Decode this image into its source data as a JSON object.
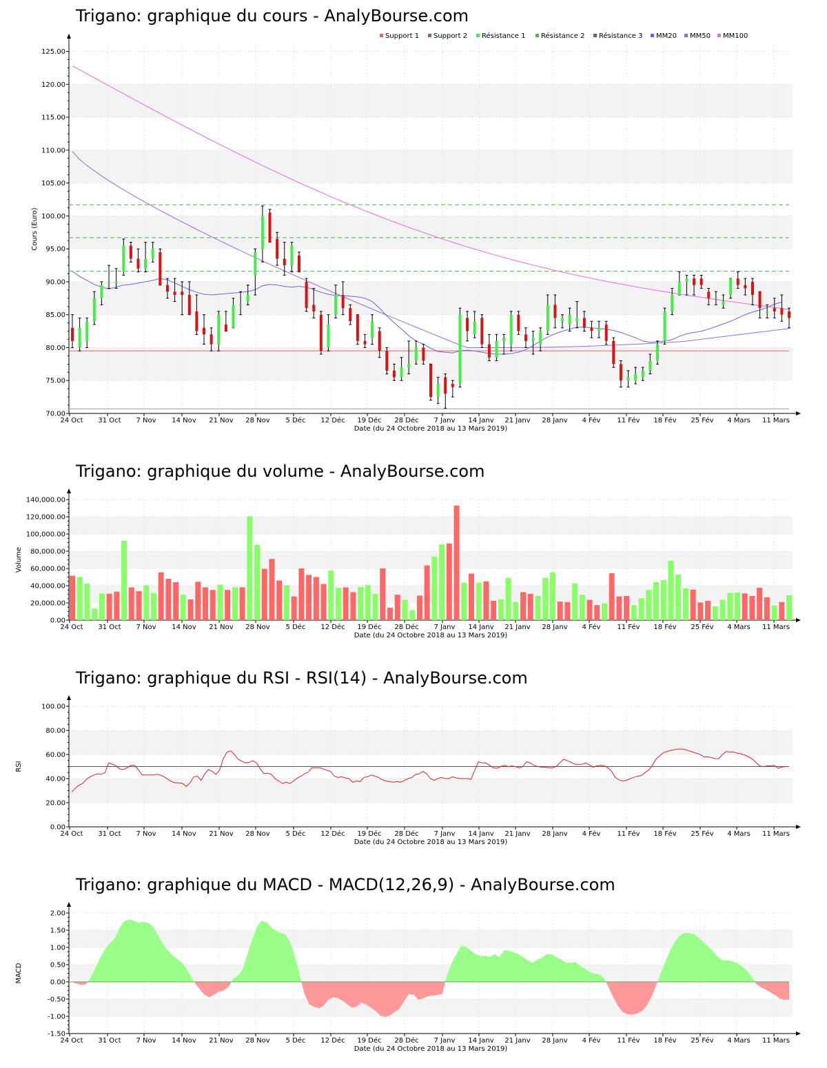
{
  "date_caption": "Date (du 24 Octobre 2018 au 13 Mars 2019)",
  "x_tick_labels": [
    "24 Oct",
    "31 Oct",
    "7 Nov",
    "14 Nov",
    "21 Nov",
    "28 Nov",
    "5 Déc",
    "12 Déc",
    "19 Déc",
    "28 Déc",
    "7 Janv",
    "14 Janv",
    "21 Janv",
    "28 Janv",
    "4 Fév",
    "11 Fév",
    "18 Fév",
    "25 Fév",
    "4 Mars",
    "11 Mars"
  ],
  "colors": {
    "up": "#44ee44",
    "down": "#dd1111",
    "vol_up": "#88ff66",
    "vol_down": "#ff6666",
    "mm20": "#6666ee",
    "mm50": "#9966ee",
    "mm100": "#ee66ee",
    "support": "#ee6666",
    "resistance": "#44bb44"
  },
  "chart_data": [
    {
      "type": "candlestick",
      "title": "Trigano: graphique du cours - AnalyBourse.com",
      "ylabel": "Cours (Euro)",
      "ylim": [
        70,
        126
      ],
      "yticks": [
        "70.00",
        "75.00",
        "80.00",
        "85.00",
        "90.00",
        "95.00",
        "100.00",
        "105.00",
        "110.00",
        "115.00",
        "120.00",
        "125.00"
      ],
      "legend": [
        "Support 1",
        "Support 2",
        "Résistance 1",
        "Résistance 2",
        "Résistance 3",
        "MM20",
        "MM50",
        "MM100"
      ],
      "support_1": 79.5,
      "support_2": 70.7,
      "resistance_1": 91.6,
      "resistance_2": 96.7,
      "resistance_3": 101.7,
      "ohlc": [
        [
          83,
          85,
          80,
          81
        ],
        [
          80,
          84.5,
          79.5,
          83
        ],
        [
          81,
          84.5,
          80,
          84
        ],
        [
          84,
          88.5,
          83.5,
          87.5
        ],
        [
          87.5,
          90,
          86.5,
          89.5
        ],
        [
          90,
          92.5,
          89,
          90
        ],
        [
          90,
          92,
          89,
          90
        ],
        [
          91.5,
          96.5,
          91,
          95.5
        ],
        [
          95.5,
          96,
          93,
          93.5
        ],
        [
          93.5,
          95,
          91.5,
          92
        ],
        [
          92,
          96,
          91.5,
          93.5
        ],
        [
          93.5,
          96,
          93,
          95
        ],
        [
          94.5,
          95,
          89.5,
          89.5
        ],
        [
          89.5,
          90.5,
          87.5,
          88.5
        ],
        [
          88.5,
          90.5,
          87,
          88
        ],
        [
          88.5,
          90,
          85,
          88
        ],
        [
          88,
          90,
          85,
          85
        ],
        [
          85.5,
          88,
          82,
          82.5
        ],
        [
          83,
          85,
          80.5,
          82
        ],
        [
          82,
          83,
          79.5,
          80.5
        ],
        [
          80.5,
          85.5,
          79.5,
          85
        ],
        [
          83.5,
          85.5,
          82.5,
          82.5
        ],
        [
          83,
          87.5,
          83,
          86.5
        ],
        [
          86.5,
          88.5,
          85,
          86.5
        ],
        [
          87,
          89.5,
          86.5,
          88
        ],
        [
          91,
          95,
          88,
          94.5
        ],
        [
          95,
          101.5,
          93,
          100
        ],
        [
          100.5,
          101,
          96,
          96
        ],
        [
          96.5,
          97.5,
          92.5,
          93.5
        ],
        [
          93.5,
          96,
          91,
          92.5
        ],
        [
          92.5,
          96,
          91.5,
          95.5
        ],
        [
          94,
          94.5,
          91.5,
          91.5
        ],
        [
          90,
          90.5,
          85.5,
          86
        ],
        [
          86.5,
          89,
          84.5,
          85.5
        ],
        [
          85,
          85.5,
          79,
          79.5
        ],
        [
          80,
          85,
          79.5,
          83.5
        ],
        [
          85,
          89.5,
          84.5,
          88
        ],
        [
          88,
          90,
          85,
          86
        ],
        [
          86,
          86.5,
          83.5,
          84
        ],
        [
          85,
          85,
          80.5,
          81
        ],
        [
          81,
          82,
          80,
          80.5
        ],
        [
          81.5,
          85,
          80.5,
          84
        ],
        [
          82.5,
          83,
          78.5,
          79.5
        ],
        [
          79.5,
          80,
          76,
          76.5
        ],
        [
          76.5,
          77.5,
          75,
          75.5
        ],
        [
          75.5,
          78.5,
          75,
          77
        ],
        [
          77,
          81,
          76,
          77.5
        ],
        [
          78,
          81,
          77.5,
          80
        ],
        [
          80,
          80.5,
          77.5,
          78
        ],
        [
          77.5,
          77.5,
          72,
          72.5
        ],
        [
          72.5,
          75.5,
          71.5,
          74.5
        ],
        [
          75.5,
          76,
          70.8,
          73
        ],
        [
          74.5,
          75,
          72.5,
          74
        ],
        [
          74.5,
          86,
          74,
          85
        ],
        [
          84.5,
          85.5,
          81,
          82.5
        ],
        [
          82,
          85.5,
          81.5,
          84
        ],
        [
          84.5,
          85,
          80,
          80.5
        ],
        [
          80.5,
          82,
          78,
          78.5
        ],
        [
          78.5,
          82,
          78,
          81
        ],
        [
          81,
          82,
          79,
          81.5
        ],
        [
          80.5,
          85.5,
          79.5,
          85
        ],
        [
          85,
          85.5,
          82,
          82.5
        ],
        [
          82,
          83,
          80,
          81
        ],
        [
          81,
          82.5,
          79,
          81.5
        ],
        [
          80.5,
          83,
          79.5,
          82.5
        ],
        [
          82.5,
          88,
          82,
          86.5
        ],
        [
          86.5,
          88,
          83,
          84.5
        ],
        [
          84,
          85,
          83,
          84.5
        ],
        [
          83.5,
          86,
          82.5,
          85
        ],
        [
          84,
          87,
          83,
          84.5
        ],
        [
          84.5,
          85.5,
          82.5,
          83
        ],
        [
          83,
          84,
          81.5,
          82.5
        ],
        [
          82.5,
          84,
          81.5,
          83
        ],
        [
          83.5,
          84,
          80.5,
          81
        ],
        [
          81,
          81.5,
          77,
          77.5
        ],
        [
          77.5,
          78,
          74,
          75
        ],
        [
          75,
          76.5,
          74,
          75.5
        ],
        [
          75,
          77,
          74.5,
          76
        ],
        [
          75.5,
          77,
          75,
          76.5
        ],
        [
          76.5,
          79,
          76,
          78
        ],
        [
          78,
          81,
          77.5,
          80.5
        ],
        [
          81,
          86,
          80.5,
          85.5
        ],
        [
          85.5,
          89,
          85,
          88
        ],
        [
          88,
          91.5,
          88,
          90
        ],
        [
          90,
          91,
          88,
          90.5
        ],
        [
          90.5,
          91,
          88,
          89.5
        ],
        [
          90.5,
          91,
          89,
          89.5
        ],
        [
          88.5,
          89,
          86.5,
          87.5
        ],
        [
          87.5,
          88.5,
          86.5,
          87.5
        ],
        [
          86.5,
          88,
          86,
          87
        ],
        [
          88,
          90.5,
          87.5,
          90.5
        ],
        [
          90.5,
          91.5,
          89,
          89.5
        ],
        [
          89.5,
          90.5,
          88,
          89
        ],
        [
          90,
          90.5,
          86.5,
          88
        ],
        [
          88.5,
          88.5,
          84.5,
          86
        ],
        [
          85.5,
          86.5,
          84.5,
          85.5
        ],
        [
          86,
          87.5,
          84.5,
          85.5
        ],
        [
          86,
          88,
          84,
          85
        ],
        [
          85.5,
          86,
          83,
          84.5
        ]
      ],
      "mm20": [
        91.6,
        90.8,
        90.2,
        89.6,
        89.2,
        88.9,
        89.2,
        89.5,
        89.6,
        89.8,
        90,
        90.2,
        90.5,
        90.3,
        89.8,
        89.3,
        88.8,
        88.4,
        88.1,
        88,
        88.1,
        88.2,
        88.3,
        88.4,
        88.5,
        88.8,
        89.4,
        89.6,
        89.5,
        89.3,
        89.2,
        89.3,
        89.2,
        88.8,
        88.4,
        88.1,
        87.9,
        87.9,
        87.8,
        87.7,
        87.5,
        87,
        86,
        84.8,
        83.8,
        82.8,
        81.8,
        81,
        80.5,
        79.9,
        79.4,
        79.3,
        79.2,
        79.5,
        79.6,
        79.5,
        79.3,
        79.1,
        79,
        79,
        79.1,
        79.3,
        79.7,
        80.3,
        81,
        81.6,
        82.1,
        82.5,
        82.8,
        83.1,
        83.1,
        83,
        82.9,
        82.8,
        82.6,
        82.3,
        81.9,
        81.5,
        81,
        80.8,
        80.9,
        81,
        81.2,
        81.7,
        82.1,
        82.3,
        82.5,
        82.8,
        83.2,
        83.6,
        84,
        84.5,
        85,
        85.4,
        85.7,
        86.1,
        86.6,
        86.9
      ]
    },
    {
      "type": "bar",
      "title": "Trigano: graphique du volume - AnalyBourse.com",
      "ylabel": "Volume",
      "ylim": [
        0,
        140000
      ],
      "yticks": [
        "0.00",
        "20,000.00",
        "40,000.00",
        "60,000.00",
        "80,000.00",
        "100,000.00",
        "120,000.00",
        "140,000.00"
      ],
      "values": [
        51500,
        50000,
        42500,
        13500,
        31000,
        30500,
        33000,
        92000,
        38000,
        33500,
        40500,
        31500,
        55500,
        48000,
        44000,
        29500,
        24000,
        44500,
        38000,
        35000,
        41000,
        35000,
        38000,
        38000,
        120500,
        87500,
        59500,
        71000,
        46000,
        40500,
        27500,
        60000,
        52500,
        50000,
        42000,
        57500,
        37500,
        38000,
        32500,
        38500,
        40500,
        30500,
        60000,
        14500,
        29500,
        23500,
        11500,
        28500,
        63500,
        74000,
        88000,
        89000,
        133000,
        43500,
        54000,
        43500,
        45000,
        22500,
        24000,
        49000,
        21000,
        32500,
        30500,
        28000,
        49000,
        55500,
        21500,
        21000,
        42500,
        29500,
        23500,
        17500,
        19500,
        54500,
        27500,
        28000,
        17500,
        25500,
        35000,
        44000,
        46500,
        69000,
        53000,
        37000,
        35500,
        20500,
        22500,
        16000,
        23500,
        31500,
        32000,
        31000,
        28000,
        37500,
        26500,
        17000,
        21000,
        29000
      ],
      "up": [
        false,
        true,
        true,
        true,
        true,
        false,
        false,
        true,
        false,
        false,
        true,
        true,
        false,
        false,
        false,
        true,
        false,
        false,
        false,
        false,
        true,
        false,
        true,
        false,
        true,
        true,
        false,
        false,
        false,
        true,
        false,
        false,
        false,
        false,
        false,
        true,
        true,
        false,
        false,
        true,
        true,
        true,
        false,
        false,
        false,
        true,
        true,
        false,
        false,
        true,
        true,
        false,
        false,
        true,
        false,
        true,
        false,
        false,
        true,
        true,
        true,
        false,
        false,
        true,
        true,
        true,
        false,
        false,
        true,
        true,
        false,
        false,
        true,
        false,
        false,
        false,
        true,
        true,
        true,
        true,
        true,
        true,
        true,
        true,
        false,
        false,
        false,
        true,
        true,
        true,
        true,
        false,
        false,
        false,
        false,
        true,
        false,
        true
      ]
    },
    {
      "type": "line",
      "title": "Trigano: graphique du RSI - RSI(14) - AnalyBourse.com",
      "ylabel": "RSI",
      "ylim": [
        0,
        100
      ],
      "yticks": [
        "0.00",
        "20.00",
        "40.00",
        "60.00",
        "80.00",
        "100.00"
      ],
      "reference_line": 50,
      "values": [
        29,
        32,
        34.5,
        36,
        39.5,
        41.5,
        43,
        44,
        43.5,
        45,
        53,
        52,
        50.5,
        48,
        47.5,
        49,
        51,
        51,
        47.5,
        43,
        43,
        43,
        43,
        43.5,
        43,
        41.5,
        39.5,
        37.5,
        36.5,
        36.5,
        36,
        33.5,
        36.5,
        41.5,
        42,
        38.5,
        44,
        47.5,
        46,
        43.5,
        47,
        56.5,
        62,
        63,
        60,
        56,
        54.5,
        53,
        53.5,
        55,
        53,
        48,
        44,
        44.5,
        43.5,
        40,
        38,
        36,
        37,
        36,
        38,
        40.5,
        42,
        44,
        45.5,
        49,
        49,
        49,
        48,
        47,
        46,
        42,
        41,
        41.5,
        40.5,
        40,
        37,
        38,
        37.5,
        41,
        41.5,
        43,
        42,
        41,
        39,
        38,
        37.5,
        37,
        37.5,
        37,
        38.5,
        40,
        41,
        43.5,
        44,
        46,
        44,
        40,
        38.5,
        40,
        41,
        40,
        40,
        41.5,
        40.5,
        40,
        40,
        40,
        39.5,
        47,
        54,
        53,
        53,
        51,
        49,
        48.5,
        50,
        51,
        50,
        50.5,
        50,
        49,
        50,
        54,
        53,
        51,
        50,
        49.5,
        49.5,
        49,
        49,
        50,
        53,
        56,
        55,
        53.5,
        52,
        51.5,
        52,
        53,
        51.5,
        49.5,
        50.5,
        51,
        50.5,
        49,
        46,
        41,
        39,
        38,
        38.5,
        40,
        41,
        42,
        42.5,
        45,
        47,
        51,
        56,
        59,
        61.5,
        62.5,
        63.5,
        64,
        64.5,
        64.5,
        64,
        63,
        62,
        61,
        60,
        58,
        58,
        57.5,
        56.5,
        56.5,
        60,
        62.5,
        62,
        62,
        61,
        60.5,
        59.5,
        58,
        56.5,
        53.5,
        50.5,
        50,
        50.5,
        50.5,
        51,
        48.5,
        49.5,
        50,
        50
      ]
    },
    {
      "type": "area",
      "title": "Trigano: graphique du MACD - MACD(12,26,9) - AnalyBourse.com",
      "ylabel": "MACD",
      "ylim": [
        -1.5,
        2.0
      ],
      "yticks": [
        "-1.50",
        "-1.00",
        "-0.50",
        "0.00",
        "0.50",
        "1.00",
        "1.50",
        "2.00"
      ],
      "values": [
        0.0,
        -0.05,
        -0.09,
        -0.07,
        0.12,
        0.4,
        0.7,
        0.95,
        1.12,
        1.25,
        1.55,
        1.75,
        1.81,
        1.78,
        1.72,
        1.74,
        1.72,
        1.62,
        1.4,
        1.15,
        0.95,
        0.8,
        0.68,
        0.58,
        0.42,
        0.18,
        -0.05,
        -0.22,
        -0.38,
        -0.45,
        -0.37,
        -0.28,
        -0.25,
        -0.15,
        0.1,
        0.18,
        0.38,
        0.8,
        1.25,
        1.6,
        1.78,
        1.72,
        1.58,
        1.48,
        1.42,
        1.38,
        1.15,
        0.72,
        0.2,
        -0.35,
        -0.65,
        -0.72,
        -0.77,
        -0.7,
        -0.52,
        -0.45,
        -0.47,
        -0.55,
        -0.65,
        -0.75,
        -0.72,
        -0.6,
        -0.66,
        -0.75,
        -0.85,
        -0.98,
        -1.02,
        -0.97,
        -0.88,
        -0.78,
        -0.55,
        -0.35,
        -0.38,
        -0.52,
        -0.48,
        -0.42,
        -0.4,
        -0.38,
        -0.35,
        0.2,
        0.55,
        0.82,
        1.05,
        1.02,
        0.9,
        0.8,
        0.75,
        0.76,
        0.72,
        0.8,
        0.72,
        0.92,
        0.9,
        0.86,
        0.8,
        0.72,
        0.62,
        0.55,
        0.65,
        0.7,
        0.81,
        0.8,
        0.72,
        0.65,
        0.56,
        0.55,
        0.58,
        0.46,
        0.38,
        0.3,
        0.24,
        0.22,
        0.12,
        -0.15,
        -0.45,
        -0.7,
        -0.88,
        -0.95,
        -0.95,
        -0.92,
        -0.85,
        -0.7,
        -0.45,
        -0.1,
        0.25,
        0.6,
        0.92,
        1.18,
        1.35,
        1.42,
        1.42,
        1.38,
        1.28,
        1.15,
        1.02,
        0.88,
        0.72,
        0.62,
        0.63,
        0.6,
        0.55,
        0.45,
        0.35,
        0.18,
        -0.05,
        -0.15,
        -0.22,
        -0.3,
        -0.38,
        -0.48,
        -0.52,
        -0.52
      ]
    }
  ]
}
